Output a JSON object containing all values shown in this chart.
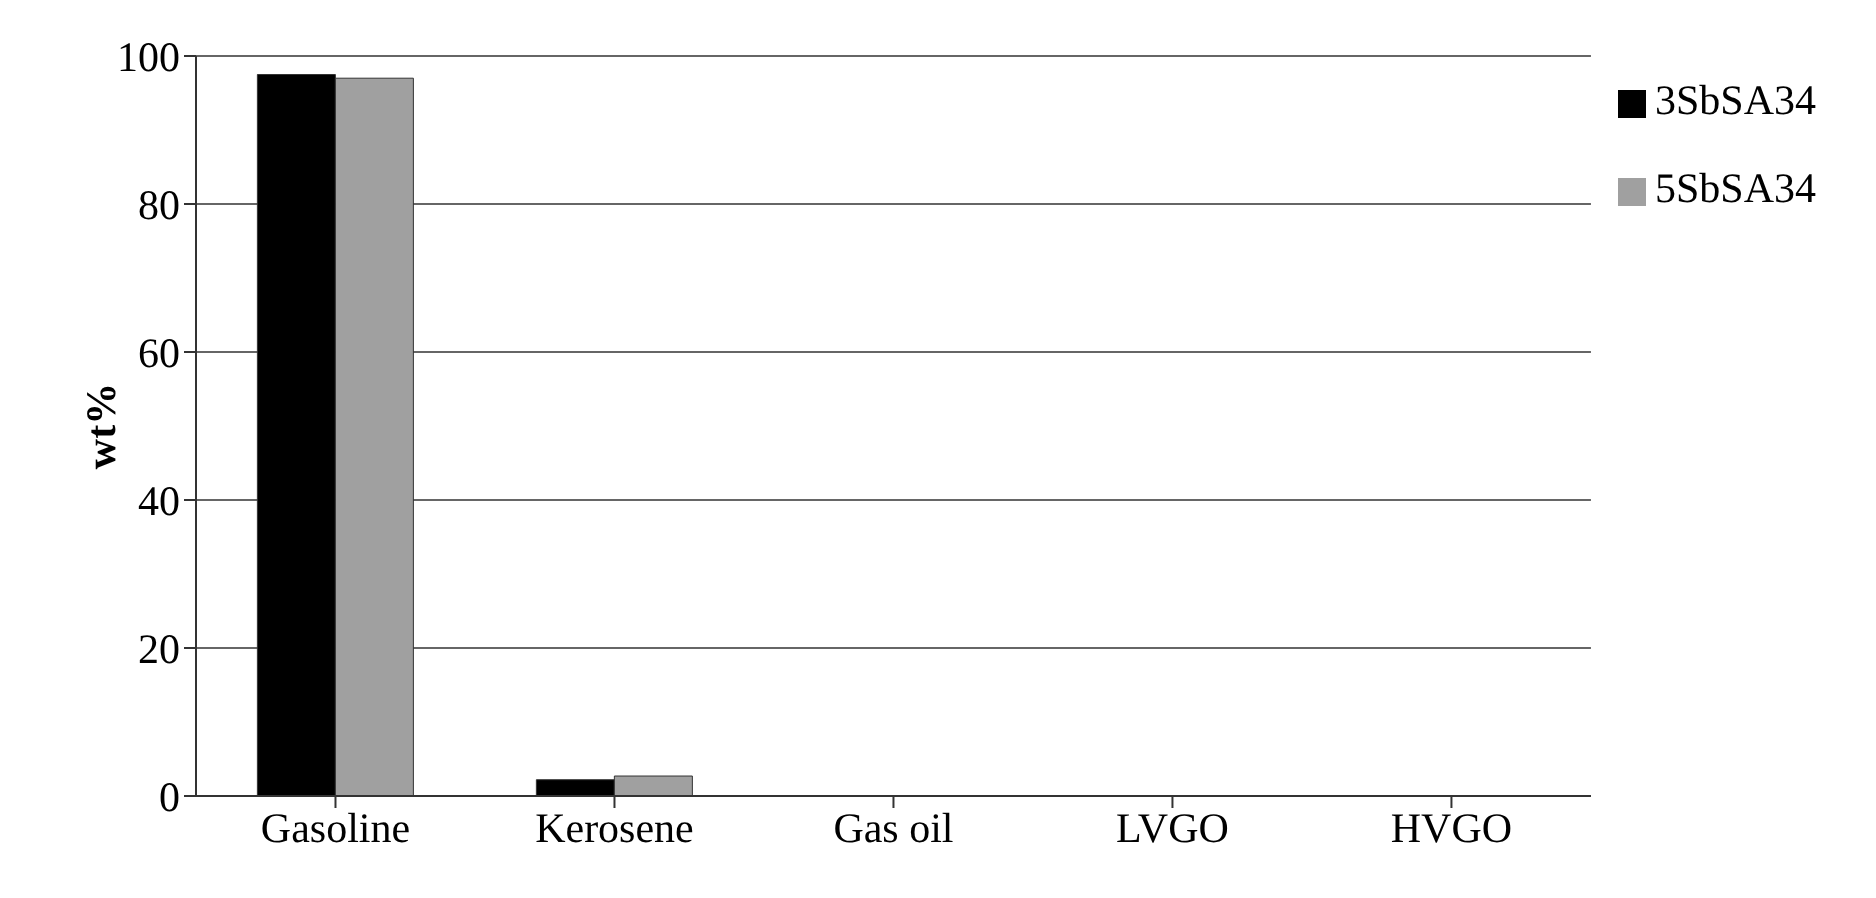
{
  "chart_data": {
    "type": "bar",
    "ylabel": "wt%",
    "categories": [
      "Gasoline",
      "Kerosene",
      "Gas oil",
      "LVGO",
      "HVGO"
    ],
    "series": [
      {
        "name": "3SbSA34",
        "color": "#000000",
        "values": [
          97.5,
          2.2,
          0,
          0,
          0
        ]
      },
      {
        "name": "5SbSA34",
        "color": "#a0a0a0",
        "values": [
          97,
          2.7,
          0,
          0,
          0
        ]
      }
    ],
    "ylim": [
      0,
      100
    ],
    "yticks": [
      0,
      20,
      40,
      60,
      80,
      100
    ],
    "grid": "y",
    "legend": "right"
  }
}
